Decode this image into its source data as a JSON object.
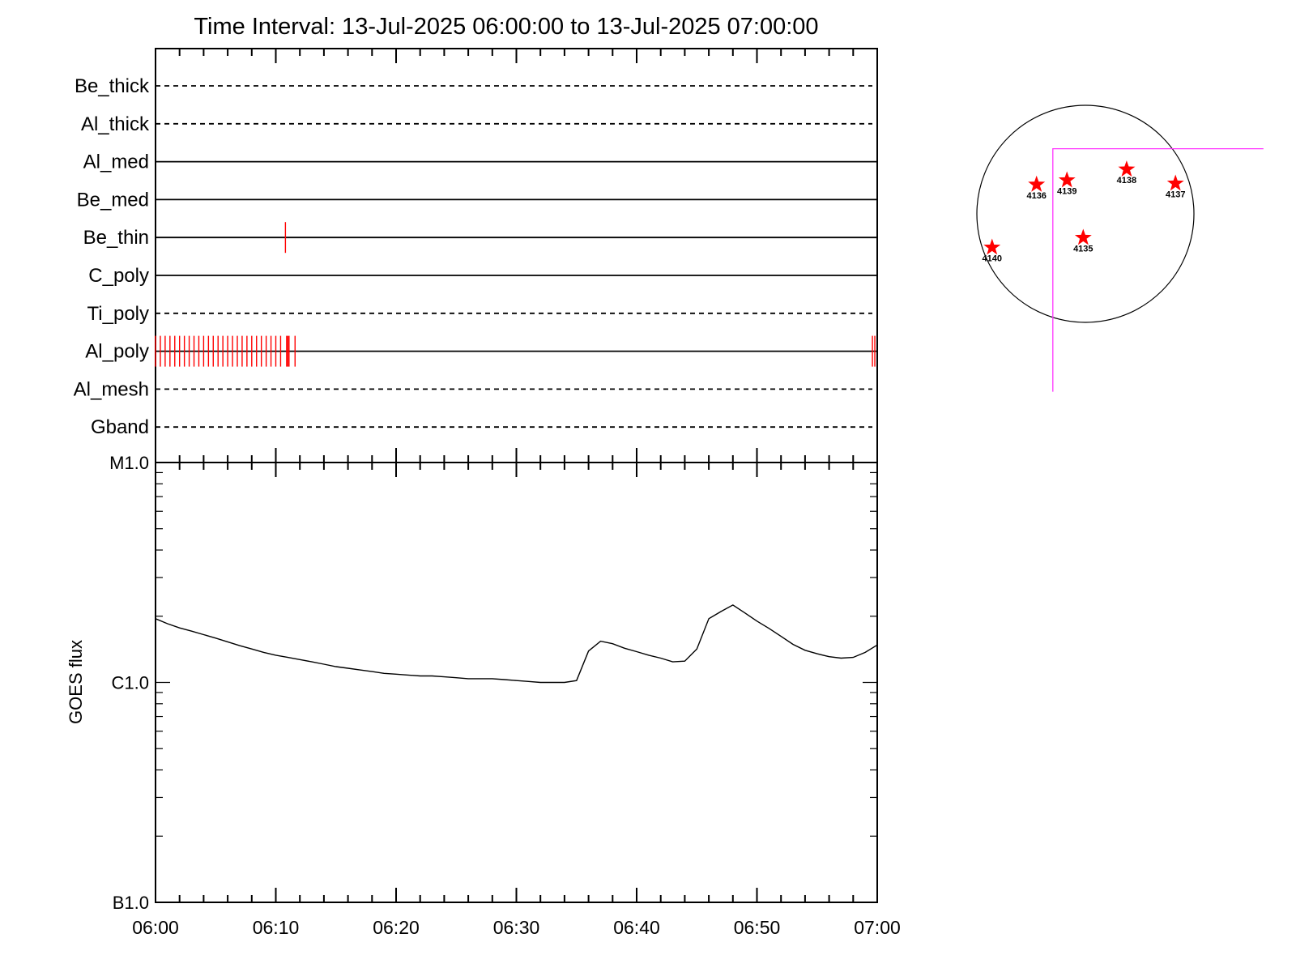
{
  "title": "Time Interval: 13-Jul-2025 06:00:00 to 13-Jul-2025 07:00:00",
  "colors": {
    "marker": "#ff0000",
    "fov": "#ff33ff",
    "line": "#000000"
  },
  "chart_data": [
    {
      "type": "timeline",
      "x_unit": "minutes after 06:00",
      "xlim": [
        0,
        60
      ],
      "channels": [
        {
          "name": "Be_thick",
          "style": "dashed",
          "events": []
        },
        {
          "name": "Al_thick",
          "style": "dashed",
          "events": []
        },
        {
          "name": "Al_med",
          "style": "solid",
          "events": []
        },
        {
          "name": "Be_med",
          "style": "solid",
          "events": []
        },
        {
          "name": "Be_thin",
          "style": "solid",
          "events": [
            10.8
          ]
        },
        {
          "name": "C_poly",
          "style": "solid",
          "events": []
        },
        {
          "name": "Ti_poly",
          "style": "dashed",
          "events": []
        },
        {
          "name": "Al_poly",
          "style": "solid",
          "events": [
            0,
            0.4,
            0.8,
            1.2,
            1.6,
            2.0,
            2.4,
            2.8,
            3.2,
            3.6,
            4.0,
            4.4,
            4.8,
            5.2,
            5.6,
            6.0,
            6.4,
            6.8,
            7.2,
            7.6,
            8.0,
            8.4,
            8.8,
            9.2,
            9.6,
            10.0,
            10.4,
            10.9,
            11.0,
            11.1,
            11.6,
            59.6,
            59.8
          ]
        },
        {
          "name": "Al_mesh",
          "style": "dashed",
          "events": []
        },
        {
          "name": "Gband",
          "style": "dashed",
          "events": []
        }
      ]
    },
    {
      "type": "line",
      "ylabel": "GOES flux",
      "yscale": "log",
      "ylim": [
        1e-07,
        1e-05
      ],
      "yticks": [
        {
          "value": 1e-05,
          "label": "M1.0"
        },
        {
          "value": 1e-06,
          "label": "C1.0"
        },
        {
          "value": 1e-07,
          "label": "B1.0"
        }
      ],
      "xticks": [
        "06:00",
        "06:10",
        "06:20",
        "06:30",
        "06:40",
        "06:50",
        "07:00"
      ],
      "xlim": [
        0,
        60
      ],
      "series": [
        {
          "x": [
            0,
            1,
            2,
            3,
            4,
            5,
            6,
            7,
            8,
            9,
            10,
            11,
            12,
            13,
            14,
            15,
            16,
            17,
            18,
            19,
            20,
            21,
            22,
            23,
            24,
            25,
            26,
            27,
            28,
            29,
            30,
            31,
            32,
            33,
            34,
            35,
            36,
            37,
            38,
            39,
            40,
            41,
            42,
            43,
            44,
            45,
            46,
            47,
            48,
            49,
            50,
            51,
            52,
            53,
            54,
            55,
            56,
            57,
            58,
            59,
            60
          ],
          "y": [
            1.95e-06,
            1.85e-06,
            1.77e-06,
            1.71e-06,
            1.65e-06,
            1.59e-06,
            1.53e-06,
            1.47e-06,
            1.42e-06,
            1.37e-06,
            1.33e-06,
            1.3e-06,
            1.27e-06,
            1.24e-06,
            1.21e-06,
            1.18e-06,
            1.16e-06,
            1.14e-06,
            1.12e-06,
            1.1e-06,
            1.09e-06,
            1.08e-06,
            1.07e-06,
            1.07e-06,
            1.06e-06,
            1.05e-06,
            1.04e-06,
            1.04e-06,
            1.04e-06,
            1.03e-06,
            1.02e-06,
            1.01e-06,
            1e-06,
            1e-06,
            1e-06,
            1.02e-06,
            1.39e-06,
            1.54e-06,
            1.5e-06,
            1.43e-06,
            1.38e-06,
            1.33e-06,
            1.29e-06,
            1.24e-06,
            1.25e-06,
            1.42e-06,
            1.95e-06,
            2.1e-06,
            2.25e-06,
            2.07e-06,
            1.9e-06,
            1.76e-06,
            1.62e-06,
            1.49e-06,
            1.4e-06,
            1.35e-06,
            1.31e-06,
            1.29e-06,
            1.3e-06,
            1.37e-06,
            1.48e-06
          ]
        }
      ]
    },
    {
      "type": "scatter",
      "title": "",
      "points": [
        {
          "label": "4136",
          "x": -0.45,
          "y": 0.27
        },
        {
          "label": "4139",
          "x": -0.17,
          "y": 0.31
        },
        {
          "label": "4138",
          "x": 0.38,
          "y": 0.41
        },
        {
          "label": "4137",
          "x": 0.83,
          "y": 0.28
        },
        {
          "label": "4135",
          "x": -0.02,
          "y": -0.22
        },
        {
          "label": "4140",
          "x": -0.86,
          "y": -0.31
        }
      ],
      "fov_corner": {
        "x": -0.3,
        "y": 0.6
      }
    }
  ]
}
